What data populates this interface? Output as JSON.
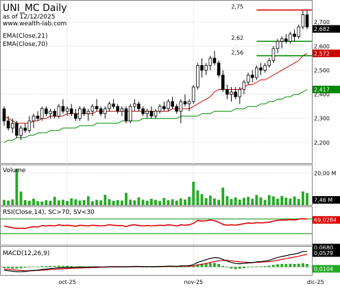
{
  "header": {
    "title": "UNI_MC Daily",
    "date_label": "as of 12/12/2025",
    "site": "www.wealth-lab.com",
    "ema21_label": "EMA(Close,21)",
    "ema70_label": "EMA(Close,70)"
  },
  "colors": {
    "up_candle": "#ffffff",
    "down_candle": "#000000",
    "ema21": "#cc0000",
    "ema70": "#008800",
    "volume": "#22aa22",
    "rsi": "#dd0000",
    "macd_line": "#000000",
    "macd_signal": "#cc0000",
    "macd_hist": "#22aa22",
    "resistance_line": "#dd0000",
    "support_line": "#008800"
  },
  "chart_data": [
    {
      "type": "candlestick",
      "title": "UNI_MC Daily",
      "ylim": [
        2.12,
        2.78
      ],
      "y_ticks": [
        {
          "value": 2.2,
          "label": "2,200"
        },
        {
          "value": 2.3,
          "label": "2,300"
        },
        {
          "value": 2.4,
          "label": "2,400"
        },
        {
          "value": 2.5,
          "label": "2,500"
        },
        {
          "value": 2.6,
          "label": "2,600"
        },
        {
          "value": 2.7,
          "label": "2,700"
        }
      ],
      "x_ticks": [
        {
          "index": 15,
          "label": "oct-25"
        },
        {
          "index": 45,
          "label": "nov-25"
        },
        {
          "index": 74,
          "label": "dic-25"
        }
      ],
      "last_close_label": "2,682",
      "ema21_last_label": "2,572",
      "ema70_last_label": "2,417",
      "levels": [
        {
          "value": 2.75,
          "label": "2,75",
          "color": "#dd0000",
          "from_index": 60
        },
        {
          "value": 2.62,
          "label": "2,62",
          "color": "#008800",
          "from_index": 60
        },
        {
          "value": 2.56,
          "label": "2,56",
          "color": "#008800",
          "from_index": 60
        }
      ],
      "ohlc": [
        [
          2.34,
          2.35,
          2.27,
          2.29
        ],
        [
          2.29,
          2.31,
          2.25,
          2.26
        ],
        [
          2.26,
          2.3,
          2.24,
          2.28
        ],
        [
          2.28,
          2.29,
          2.22,
          2.23
        ],
        [
          2.23,
          2.27,
          2.21,
          2.26
        ],
        [
          2.26,
          2.28,
          2.24,
          2.25
        ],
        [
          2.25,
          2.31,
          2.24,
          2.29
        ],
        [
          2.29,
          2.32,
          2.26,
          2.31
        ],
        [
          2.31,
          2.33,
          2.29,
          2.3
        ],
        [
          2.3,
          2.35,
          2.29,
          2.34
        ],
        [
          2.34,
          2.35,
          2.31,
          2.32
        ],
        [
          2.32,
          2.34,
          2.3,
          2.33
        ],
        [
          2.33,
          2.34,
          2.3,
          2.31
        ],
        [
          2.31,
          2.36,
          2.3,
          2.35
        ],
        [
          2.35,
          2.38,
          2.32,
          2.33
        ],
        [
          2.33,
          2.35,
          2.31,
          2.34
        ],
        [
          2.34,
          2.36,
          2.31,
          2.32
        ],
        [
          2.32,
          2.34,
          2.29,
          2.3
        ],
        [
          2.3,
          2.35,
          2.29,
          2.34
        ],
        [
          2.34,
          2.35,
          2.31,
          2.32
        ],
        [
          2.32,
          2.34,
          2.29,
          2.33
        ],
        [
          2.33,
          2.36,
          2.31,
          2.35
        ],
        [
          2.35,
          2.38,
          2.33,
          2.34
        ],
        [
          2.34,
          2.35,
          2.31,
          2.32
        ],
        [
          2.32,
          2.35,
          2.3,
          2.34
        ],
        [
          2.34,
          2.37,
          2.33,
          2.36
        ],
        [
          2.36,
          2.38,
          2.34,
          2.35
        ],
        [
          2.35,
          2.36,
          2.32,
          2.33
        ],
        [
          2.33,
          2.35,
          2.31,
          2.34
        ],
        [
          2.34,
          2.35,
          2.28,
          2.29
        ],
        [
          2.29,
          2.36,
          2.28,
          2.35
        ],
        [
          2.35,
          2.38,
          2.33,
          2.36
        ],
        [
          2.36,
          2.37,
          2.33,
          2.34
        ],
        [
          2.34,
          2.35,
          2.31,
          2.32
        ],
        [
          2.32,
          2.34,
          2.3,
          2.33
        ],
        [
          2.33,
          2.35,
          2.3,
          2.31
        ],
        [
          2.31,
          2.34,
          2.3,
          2.33
        ],
        [
          2.33,
          2.36,
          2.32,
          2.35
        ],
        [
          2.35,
          2.37,
          2.33,
          2.34
        ],
        [
          2.34,
          2.38,
          2.33,
          2.37
        ],
        [
          2.37,
          2.39,
          2.34,
          2.35
        ],
        [
          2.35,
          2.36,
          2.32,
          2.33
        ],
        [
          2.33,
          2.38,
          2.28,
          2.37
        ],
        [
          2.37,
          2.4,
          2.35,
          2.36
        ],
        [
          2.36,
          2.38,
          2.33,
          2.37
        ],
        [
          2.37,
          2.44,
          2.36,
          2.43
        ],
        [
          2.43,
          2.53,
          2.42,
          2.52
        ],
        [
          2.52,
          2.55,
          2.47,
          2.5
        ],
        [
          2.5,
          2.53,
          2.48,
          2.52
        ],
        [
          2.52,
          2.56,
          2.5,
          2.55
        ],
        [
          2.55,
          2.58,
          2.52,
          2.53
        ],
        [
          2.53,
          2.54,
          2.47,
          2.48
        ],
        [
          2.48,
          2.5,
          2.41,
          2.42
        ],
        [
          2.42,
          2.44,
          2.38,
          2.4
        ],
        [
          2.4,
          2.43,
          2.37,
          2.41
        ],
        [
          2.41,
          2.43,
          2.38,
          2.39
        ],
        [
          2.39,
          2.43,
          2.36,
          2.42
        ],
        [
          2.42,
          2.46,
          2.4,
          2.45
        ],
        [
          2.45,
          2.49,
          2.44,
          2.48
        ],
        [
          2.48,
          2.5,
          2.45,
          2.47
        ],
        [
          2.47,
          2.52,
          2.46,
          2.51
        ],
        [
          2.51,
          2.53,
          2.48,
          2.5
        ],
        [
          2.5,
          2.53,
          2.49,
          2.52
        ],
        [
          2.52,
          2.55,
          2.51,
          2.54
        ],
        [
          2.54,
          2.6,
          2.53,
          2.59
        ],
        [
          2.59,
          2.63,
          2.57,
          2.62
        ],
        [
          2.62,
          2.64,
          2.59,
          2.63
        ],
        [
          2.63,
          2.65,
          2.61,
          2.62
        ],
        [
          2.62,
          2.66,
          2.61,
          2.65
        ],
        [
          2.65,
          2.67,
          2.62,
          2.64
        ],
        [
          2.64,
          2.69,
          2.63,
          2.68
        ],
        [
          2.68,
          2.75,
          2.67,
          2.73
        ],
        [
          2.73,
          2.75,
          2.67,
          2.68
        ]
      ],
      "ema21": [
        2.31,
        2.3,
        2.29,
        2.28,
        2.28,
        2.28,
        2.28,
        2.29,
        2.29,
        2.3,
        2.3,
        2.31,
        2.31,
        2.31,
        2.31,
        2.32,
        2.32,
        2.32,
        2.32,
        2.32,
        2.32,
        2.32,
        2.33,
        2.33,
        2.33,
        2.33,
        2.33,
        2.33,
        2.33,
        2.33,
        2.33,
        2.33,
        2.33,
        2.33,
        2.33,
        2.33,
        2.33,
        2.33,
        2.33,
        2.33,
        2.34,
        2.34,
        2.34,
        2.34,
        2.34,
        2.35,
        2.36,
        2.37,
        2.38,
        2.39,
        2.41,
        2.42,
        2.42,
        2.42,
        2.42,
        2.42,
        2.42,
        2.43,
        2.44,
        2.44,
        2.45,
        2.46,
        2.46,
        2.47,
        2.48,
        2.49,
        2.5,
        2.51,
        2.52,
        2.53,
        2.54,
        2.56,
        2.57
      ],
      "ema70": [
        2.2,
        2.21,
        2.21,
        2.22,
        2.22,
        2.22,
        2.23,
        2.23,
        2.24,
        2.24,
        2.24,
        2.25,
        2.25,
        2.25,
        2.26,
        2.26,
        2.26,
        2.26,
        2.27,
        2.27,
        2.27,
        2.27,
        2.28,
        2.28,
        2.28,
        2.28,
        2.28,
        2.28,
        2.29,
        2.29,
        2.29,
        2.29,
        2.29,
        2.3,
        2.3,
        2.3,
        2.3,
        2.3,
        2.3,
        2.3,
        2.3,
        2.3,
        2.31,
        2.31,
        2.31,
        2.31,
        2.31,
        2.32,
        2.32,
        2.32,
        2.33,
        2.33,
        2.33,
        2.33,
        2.33,
        2.34,
        2.34,
        2.34,
        2.35,
        2.35,
        2.35,
        2.36,
        2.36,
        2.37,
        2.37,
        2.38,
        2.38,
        2.39,
        2.39,
        2.4,
        2.4,
        2.41,
        2.42
      ]
    },
    {
      "type": "bar",
      "title": "Volume",
      "ylim": [
        0,
        24
      ],
      "y_ticks": [
        {
          "value": 20,
          "label": "20,00 M"
        }
      ],
      "last_value_label": "7,46 M",
      "values": [
        3.2,
        2.8,
        3.5,
        22.5,
        8.4,
        3.1,
        2.6,
        3.9,
        2.4,
        2.2,
        3,
        2.7,
        5.1,
        2.9,
        3.3,
        2.5,
        4.2,
        3.6,
        2.8,
        3.1,
        5.5,
        2.4,
        3.2,
        2.9,
        6.4,
        3.7,
        2.6,
        3.1,
        2.8,
        7.6,
        3.4,
        2.9,
        4.8,
        3.3,
        2.7,
        3.9,
        3.2,
        2.5,
        4.4,
        3,
        3.6,
        2.8,
        4.1,
        3.5,
        5.2,
        14.6,
        9.2,
        6.8,
        4.3,
        5.9,
        4.1,
        3.3,
        10.9,
        5.6,
        3.8,
        4.7,
        3.4,
        4.5,
        5.1,
        3.9,
        6.3,
        4.8,
        3.2,
        6.2,
        5.4,
        3.9,
        5.7,
        4.6,
        4.1,
        5.3,
        3.8,
        8.5,
        7.5
      ]
    },
    {
      "type": "line",
      "title": "RSI(Close,14), SC>70, SV<30",
      "ylim": [
        0,
        100
      ],
      "thresholds": [
        70,
        30
      ],
      "last_value_label": "69,0284",
      "values": [
        51,
        48,
        46,
        44,
        45,
        44,
        47,
        49,
        48,
        52,
        51,
        52,
        51,
        54,
        52,
        53,
        52,
        50,
        53,
        52,
        51,
        53,
        52,
        51,
        52,
        54,
        53,
        52,
        52,
        49,
        53,
        54,
        52,
        51,
        52,
        51,
        52,
        53,
        52,
        54,
        53,
        51,
        54,
        53,
        54,
        58,
        66,
        64,
        65,
        67,
        65,
        61,
        55,
        53,
        54,
        53,
        55,
        57,
        59,
        58,
        60,
        59,
        60,
        61,
        64,
        66,
        67,
        67,
        68,
        67,
        69,
        71,
        69
      ]
    },
    {
      "type": "line",
      "title": "MACD(12,26,9)",
      "ylim": [
        -0.03,
        0.07
      ],
      "value_labels": [
        "0,0680",
        "0,0579",
        "0,0104"
      ],
      "macd": [
        -0.012,
        -0.014,
        -0.016,
        -0.018,
        -0.018,
        -0.017,
        -0.015,
        -0.013,
        -0.012,
        -0.009,
        -0.008,
        -0.006,
        -0.005,
        -0.003,
        -0.003,
        -0.002,
        -0.002,
        -0.002,
        -0.001,
        -0.001,
        -0.001,
        0,
        0,
        0,
        0,
        0.001,
        0.001,
        0.001,
        0.001,
        0,
        0.001,
        0.002,
        0.002,
        0.001,
        0.001,
        0.001,
        0.001,
        0.002,
        0.002,
        0.003,
        0.003,
        0.002,
        0.004,
        0.004,
        0.005,
        0.009,
        0.017,
        0.022,
        0.027,
        0.032,
        0.035,
        0.034,
        0.028,
        0.022,
        0.017,
        0.013,
        0.012,
        0.013,
        0.015,
        0.016,
        0.019,
        0.02,
        0.022,
        0.025,
        0.03,
        0.035,
        0.039,
        0.042,
        0.046,
        0.048,
        0.052,
        0.058,
        0.058
      ],
      "signal": [
        -0.008,
        -0.009,
        -0.01,
        -0.012,
        -0.013,
        -0.014,
        -0.014,
        -0.014,
        -0.013,
        -0.012,
        -0.011,
        -0.01,
        -0.009,
        -0.008,
        -0.007,
        -0.006,
        -0.005,
        -0.004,
        -0.004,
        -0.003,
        -0.003,
        -0.002,
        -0.002,
        -0.001,
        -0.001,
        0,
        0,
        0,
        0.001,
        0.001,
        0.001,
        0.001,
        0.001,
        0.001,
        0.001,
        0.001,
        0.001,
        0.001,
        0.001,
        0.002,
        0.002,
        0.002,
        0.002,
        0.003,
        0.003,
        0.004,
        0.007,
        0.01,
        0.013,
        0.017,
        0.02,
        0.023,
        0.024,
        0.024,
        0.023,
        0.021,
        0.019,
        0.018,
        0.017,
        0.017,
        0.017,
        0.018,
        0.019,
        0.02,
        0.022,
        0.025,
        0.028,
        0.031,
        0.034,
        0.037,
        0.04,
        0.044,
        0.047
      ]
    }
  ]
}
